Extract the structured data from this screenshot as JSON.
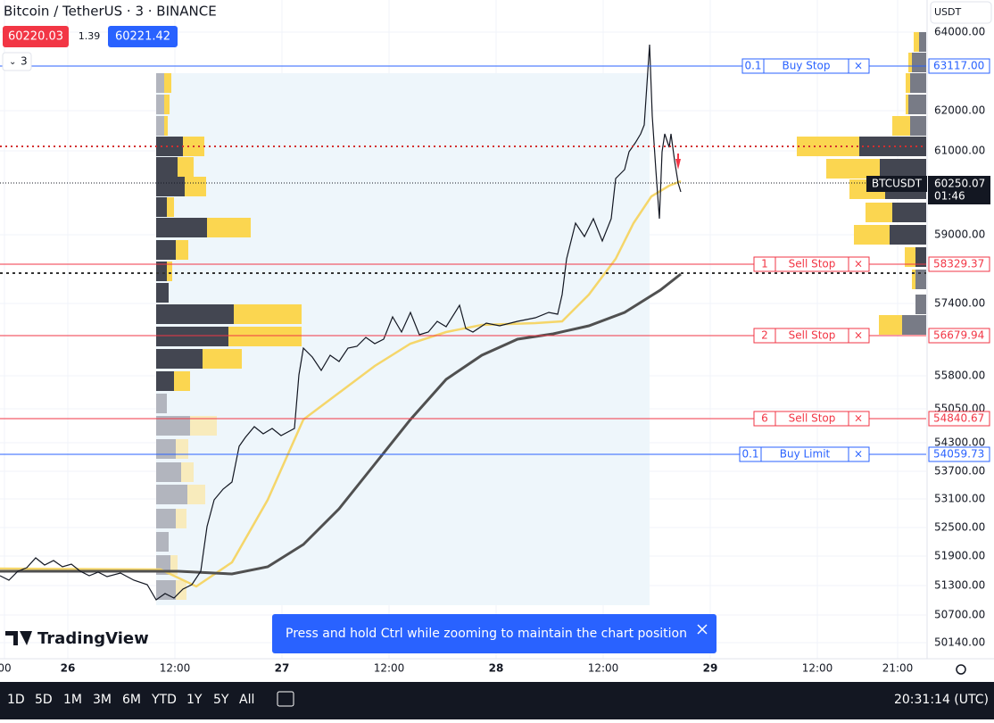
{
  "header": {
    "symbol": "Bitcoin / TetherUS · 3 · BINANCE",
    "sell_price": "60220.03",
    "spread": "1.39",
    "buy_price": "60221.42",
    "indicator_toggle": "3",
    "currency": "USDT"
  },
  "price_axis": [
    "64000.00",
    "62000.00",
    "61000.00",
    "59000.00",
    "57400.00",
    "55800.00",
    "55050.00",
    "54300.00",
    "53700.00",
    "53100.00",
    "52500.00",
    "51900.00",
    "51300.00",
    "50700.00",
    "50140.00"
  ],
  "orders": [
    {
      "qty": "0.1",
      "label": "Buy Stop",
      "price": "63117.00"
    },
    {
      "qty": "1",
      "label": "Sell Stop",
      "price": "58329.37"
    },
    {
      "qty": "2",
      "label": "Sell Stop",
      "price": "56679.94"
    },
    {
      "qty": "6",
      "label": "Sell Stop",
      "price": "54840.67"
    },
    {
      "qty": "0.1",
      "label": "Buy Limit",
      "price": "54059.73"
    }
  ],
  "last_price": {
    "symbol": "BTCUSDT",
    "price": "60250.07",
    "countdown": "01:46"
  },
  "time_axis": [
    "00",
    "26",
    "12:00",
    "27",
    "12:00",
    "28",
    "12:00",
    "29",
    "12:00",
    "21:00"
  ],
  "toast": "Press and hold Ctrl while zooming to maintain the chart position",
  "logo": "TradingView",
  "ranges": [
    "1D",
    "5D",
    "1M",
    "3M",
    "6M",
    "YTD",
    "1Y",
    "5Y",
    "All"
  ],
  "clock": "20:31:14 (UTC)"
}
